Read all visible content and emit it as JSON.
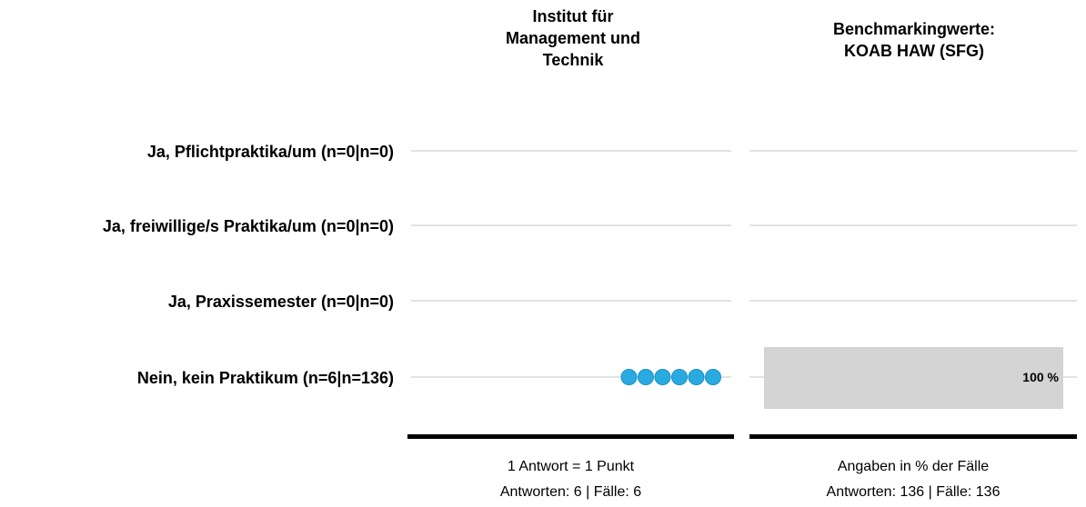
{
  "chart_data": [
    {
      "type": "dot",
      "title": "Institut für\nManagement und\nTechnik",
      "categories": [
        "Ja, Pflichtpraktika/um (n=0|n=0)",
        "Ja, freiwillige/s Praktika/um (n=0|n=0)",
        "Ja, Praxissemester (n=0|n=0)",
        "Nein, kein Praktikum (n=6|n=136)"
      ],
      "values": [
        0,
        0,
        0,
        6
      ],
      "unit_note": "1 Antwort = 1 Punkt",
      "footer": "Antworten: 6 | Fälle: 6",
      "dot_color": "#29abe2"
    },
    {
      "type": "bar",
      "title": "Benchmarkingwerte:\nKOAB HAW (SFG)",
      "categories": [
        "Ja, Pflichtpraktika/um (n=0|n=0)",
        "Ja, freiwillige/s Praktika/um (n=0|n=0)",
        "Ja, Praxissemester (n=0|n=0)",
        "Nein, kein Praktikum (n=6|n=136)"
      ],
      "values": [
        0,
        0,
        0,
        100
      ],
      "value_labels": [
        "",
        "",
        "",
        "100 %"
      ],
      "xlim": [
        0,
        100
      ],
      "unit_note": "Angaben in % der Fälle",
      "footer": "Antworten: 136 | Fälle: 136",
      "bar_color": "#d4d4d4"
    }
  ]
}
